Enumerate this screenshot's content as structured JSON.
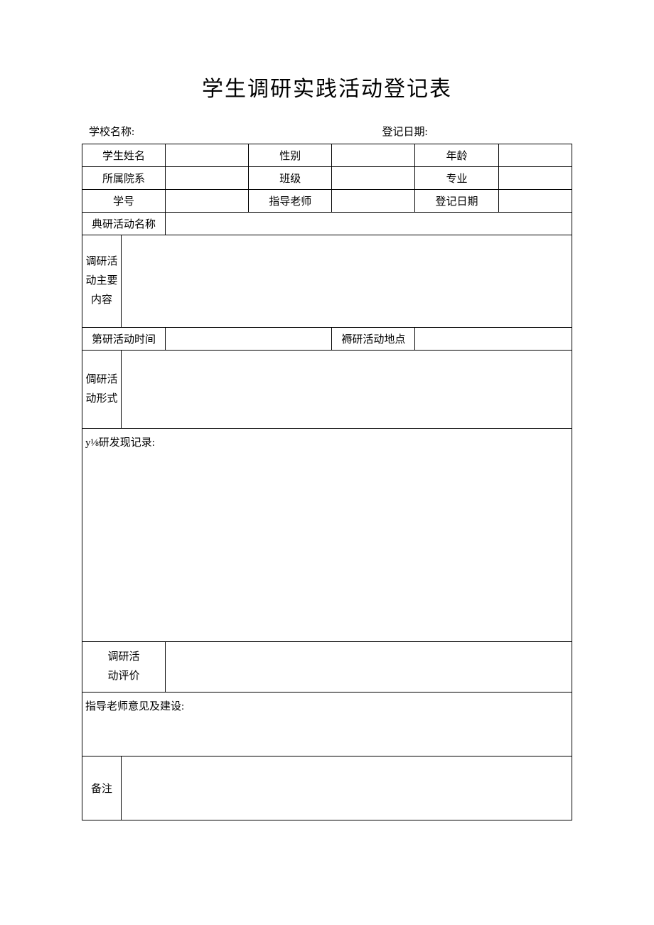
{
  "page": {
    "title": "学生调研实践活动登记表",
    "background_color": "#ffffff",
    "border_color": "#000000",
    "text_color": "#000000",
    "title_fontsize": 30,
    "body_fontsize": 15
  },
  "header": {
    "school_label": "学校名称:",
    "date_label": "登记日期:"
  },
  "table": {
    "row1": {
      "name_label": "学生姓名",
      "gender_label": "性别",
      "age_label": "年龄"
    },
    "row2": {
      "dept_label": "所属院系",
      "class_label": "班级",
      "major_label": "专业"
    },
    "row3": {
      "id_label": "学号",
      "advisor_label": "指导老师",
      "reg_date_label": "登记日期"
    },
    "row4": {
      "activity_name_label": "典研活动名称"
    },
    "row5": {
      "content_label": "调研活\n动主要\n内容"
    },
    "row6": {
      "time_label": "第研活动时间",
      "place_label": "褥研活动地点"
    },
    "row7": {
      "form_label": "倜研活\n动形式"
    },
    "row8": {
      "record_label": "y⅛研发现记录:"
    },
    "row9": {
      "eval_label": "调研活\n动评价"
    },
    "row10": {
      "advice_label": "指导老师意见及建设:"
    },
    "row11": {
      "note_label": "备注"
    },
    "columns": {
      "widths_percent": [
        8,
        9,
        17,
        17,
        17,
        17,
        15
      ]
    }
  }
}
